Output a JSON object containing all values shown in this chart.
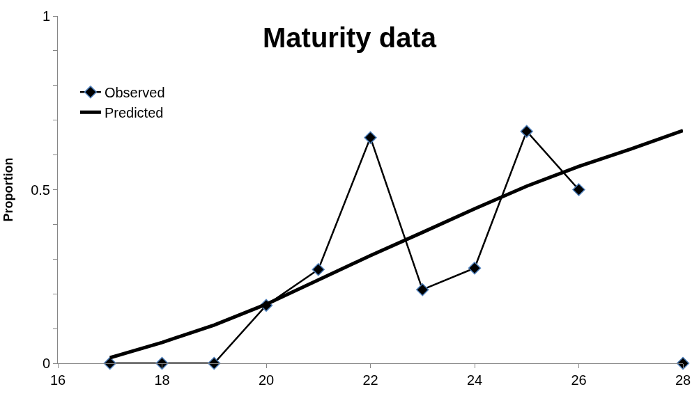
{
  "chart_data": {
    "type": "line",
    "title": "Maturity data",
    "ylabel": "Proportion",
    "x": [
      17,
      18,
      19,
      20,
      21,
      22,
      23,
      24,
      25,
      26,
      27,
      28
    ],
    "series": [
      {
        "name": "Observed",
        "color": "#000000",
        "marker": "diamond",
        "values": [
          0,
          0,
          0,
          0.167,
          0.27,
          0.65,
          0.212,
          0.274,
          0.668,
          0.5,
          null,
          0
        ]
      },
      {
        "name": "Predicted",
        "color": "#000000",
        "marker": "none",
        "values": [
          0.016,
          0.06,
          0.11,
          0.17,
          0.24,
          0.31,
          0.377,
          0.445,
          0.51,
          0.567,
          0.617,
          0.67
        ]
      }
    ],
    "xlim": [
      16,
      28
    ],
    "xticks": [
      16,
      18,
      20,
      22,
      24,
      26,
      28
    ],
    "ylim": [
      0,
      1
    ],
    "yticks": [
      0,
      {
        "value": 0.1,
        "label": null
      },
      {
        "value": 0.2,
        "label": null
      },
      {
        "value": 0.3,
        "label": null
      },
      {
        "value": 0.4,
        "label": null
      },
      0.5,
      {
        "value": 0.6,
        "label": null
      },
      {
        "value": 0.7,
        "label": null
      },
      {
        "value": 0.8,
        "label": null
      },
      {
        "value": 0.9,
        "label": null
      },
      1
    ],
    "legend": "top left"
  }
}
